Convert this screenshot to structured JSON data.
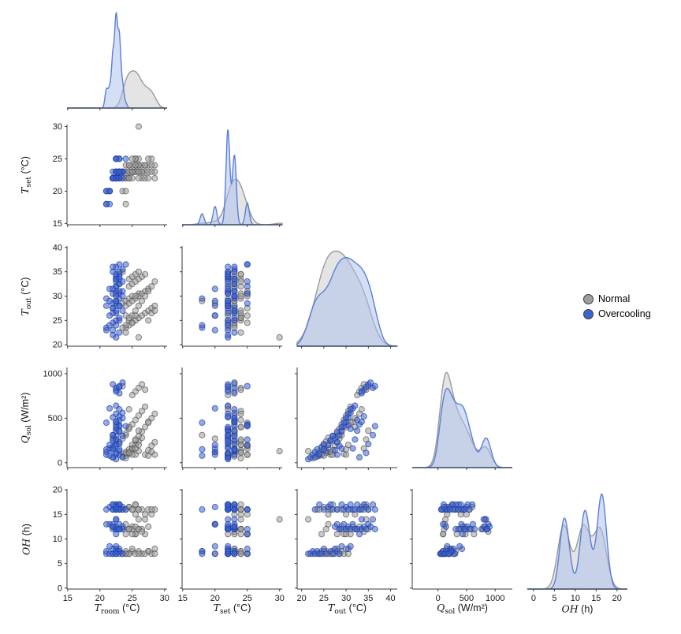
{
  "legend": {
    "items": [
      {
        "key": "normal",
        "label": "Normal",
        "color": "#9e9e9e"
      },
      {
        "key": "overcooling",
        "label": "Overcooling",
        "color": "#3d63d0"
      }
    ]
  },
  "chart_data": {
    "type": "scatter",
    "subtype": "corner-pairplot-matrix",
    "description": "5x5 lower-triangle pair plot: scatter panels below the diagonal, per-class KDE density curves on the diagonal, comparing Normal vs Overcooling operation records.",
    "grid": "on? no - grid off, white background, left/bottom spines only",
    "legend_position": "right-middle",
    "variables": [
      {
        "key": "t_room",
        "label": "T_room (°C)",
        "xlim": [
          14.9,
          30.4
        ],
        "ylim": [
          14.9,
          30.4
        ],
        "ticks": [
          15,
          20,
          25,
          30
        ],
        "kde_bw": {
          "normal": 0.55,
          "overcooling": 0.22
        }
      },
      {
        "key": "t_set",
        "label": "T_set (°C)",
        "xlim": [
          14.9,
          30.4
        ],
        "ylim": [
          14.8,
          30.3
        ],
        "ticks": [
          15,
          20,
          25,
          30
        ],
        "kde_bw": {
          "normal": 0.8,
          "overcooling": 0.3
        }
      },
      {
        "key": "t_out",
        "label": "T_out (°C)",
        "xlim": [
          19.0,
          41.5
        ],
        "ylim": [
          19.7,
          40.3
        ],
        "ticks": [
          20,
          25,
          30,
          35,
          40
        ],
        "kde_bw": {
          "normal": 2.0,
          "overcooling": 1.4
        }
      },
      {
        "key": "q_sol",
        "label": "Q_sol (W/m²)",
        "xlim": [
          -450,
          1300
        ],
        "ylim": [
          -55,
          1070
        ],
        "ticks": [
          0,
          500,
          1000
        ],
        "kde_bw": {
          "normal": 90,
          "overcooling": 75
        }
      },
      {
        "key": "oh",
        "label": "OH (h)",
        "xlim": [
          -1.5,
          22.5
        ],
        "ylim": [
          -0.2,
          20.2
        ],
        "ticks": [
          0,
          5,
          10,
          15,
          20
        ],
        "kde_bw": {
          "normal": 1.4,
          "overcooling": 1.0
        }
      }
    ],
    "series": [
      {
        "key": "normal",
        "name": "Normal",
        "point_fill": "#9e9e9e",
        "point_edge": "#4f4f4f",
        "kde_stroke": "#9a9a9a",
        "kde_fill": "#c9c9c9",
        "record_fields": [
          "t_room",
          "t_set",
          "t_out",
          "q_sol",
          "oh"
        ],
        "records": [
          [
            24,
            22,
            23.5,
            80,
            7
          ],
          [
            24.5,
            23,
            24,
            120,
            7
          ],
          [
            25,
            23,
            24.5,
            160,
            7.5
          ],
          [
            25.5,
            24,
            25,
            200,
            7
          ],
          [
            26,
            24,
            25.5,
            240,
            7.5
          ],
          [
            26.5,
            22,
            26,
            280,
            7
          ],
          [
            27,
            23,
            26.5,
            90,
            7
          ],
          [
            27.5,
            24,
            27,
            140,
            7.5
          ],
          [
            28,
            25,
            27.5,
            190,
            7
          ],
          [
            28.5,
            23,
            28,
            230,
            8
          ],
          [
            23.5,
            20,
            28.5,
            270,
            7
          ],
          [
            24,
            18,
            29,
            310,
            7.5
          ],
          [
            24.5,
            22,
            29.5,
            100,
            7
          ],
          [
            25,
            23,
            30,
            150,
            8
          ],
          [
            26,
            25,
            30.5,
            200,
            7
          ],
          [
            24,
            23,
            28,
            330,
            11
          ],
          [
            24.5,
            22,
            28.5,
            380,
            12
          ],
          [
            25,
            23,
            29,
            430,
            12.5
          ],
          [
            25.5,
            24,
            29.5,
            480,
            11
          ],
          [
            26,
            23,
            30,
            530,
            12
          ],
          [
            26.5,
            24,
            30.5,
            580,
            12
          ],
          [
            27,
            22,
            31,
            630,
            11
          ],
          [
            27.5,
            23,
            31.5,
            460,
            12.5
          ],
          [
            24.5,
            24,
            32,
            400,
            12
          ],
          [
            25,
            22,
            32.5,
            760,
            12
          ],
          [
            25.5,
            23,
            33,
            800,
            12.5
          ],
          [
            26,
            24,
            33.5,
            840,
            12
          ],
          [
            26.5,
            23,
            34,
            880,
            11.5
          ],
          [
            27,
            24,
            34.5,
            820,
            14
          ],
          [
            23.5,
            22,
            35,
            860,
            12
          ],
          [
            25.5,
            25,
            30,
            90,
            11
          ],
          [
            26,
            30,
            21.5,
            130,
            14
          ],
          [
            24,
            20,
            26,
            120,
            13
          ],
          [
            24,
            22,
            24,
            100,
            16
          ],
          [
            24.5,
            23,
            25,
            150,
            16.5
          ],
          [
            25,
            24,
            26,
            200,
            16
          ],
          [
            25.5,
            23,
            27,
            250,
            17
          ],
          [
            26,
            22,
            28,
            300,
            16
          ],
          [
            26.5,
            23,
            29,
            350,
            16
          ],
          [
            27,
            24,
            30,
            400,
            15
          ],
          [
            27.5,
            25,
            31,
            450,
            16
          ],
          [
            28,
            23,
            32,
            500,
            15
          ],
          [
            28.5,
            24,
            33,
            550,
            16
          ],
          [
            24.5,
            22,
            33.5,
            600,
            16.5
          ],
          [
            25,
            23,
            34,
            160,
            16
          ],
          [
            25.5,
            24,
            34.5,
            260,
            17
          ],
          [
            26,
            23,
            35,
            360,
            16
          ],
          [
            23.5,
            23,
            23.5,
            70,
            16
          ],
          [
            28,
            24,
            26.5,
            120,
            16
          ],
          [
            25.5,
            25,
            26,
            160,
            15
          ],
          [
            24,
            24,
            22.5,
            50,
            7
          ],
          [
            27.5,
            22,
            25,
            80,
            7.5
          ],
          [
            28.5,
            22,
            27,
            90,
            7
          ],
          [
            25,
            25,
            24.5,
            90,
            11
          ],
          [
            24.5,
            24,
            25.5,
            110,
            12
          ]
        ]
      },
      {
        "key": "overcooling",
        "name": "Overcooling",
        "point_fill": "#3d63d0",
        "point_edge": "#1c3a9e",
        "kde_stroke": "#5b7fd9",
        "kde_fill": "#a9bee9",
        "record_fields": [
          "t_room",
          "t_set",
          "t_out",
          "q_sol",
          "oh"
        ],
        "records": [
          [
            22.5,
            22,
            21.5,
            40,
            7
          ],
          [
            22,
            22,
            22,
            60,
            7
          ],
          [
            23,
            23,
            22.5,
            90,
            7.5
          ],
          [
            21,
            20,
            23,
            120,
            7
          ],
          [
            21,
            18,
            23.5,
            150,
            7.5
          ],
          [
            21.5,
            18,
            24,
            80,
            7
          ],
          [
            22,
            22,
            24.5,
            180,
            7
          ],
          [
            22.5,
            22,
            25,
            210,
            8
          ],
          [
            23,
            23,
            25.5,
            130,
            7
          ],
          [
            22.5,
            23,
            26.5,
            250,
            7.5
          ],
          [
            23.5,
            23,
            27,
            300,
            7
          ],
          [
            22,
            22,
            27.5,
            270,
            8
          ],
          [
            23,
            22,
            28,
            230,
            7.5
          ],
          [
            22.5,
            25,
            28.5,
            190,
            7
          ],
          [
            21.5,
            20,
            29,
            160,
            8.5
          ],
          [
            23,
            25,
            30.5,
            420,
            8
          ],
          [
            22.5,
            22,
            31,
            380,
            8.5
          ],
          [
            22,
            22,
            28.5,
            310,
            12
          ],
          [
            22.5,
            22,
            29,
            360,
            12
          ],
          [
            23,
            23,
            29.5,
            410,
            13
          ],
          [
            22.5,
            23,
            30,
            460,
            12
          ],
          [
            22,
            22,
            30.5,
            510,
            12.5
          ],
          [
            23.5,
            23,
            31,
            560,
            12
          ],
          [
            21.5,
            20,
            31.5,
            610,
            13
          ],
          [
            22.5,
            22,
            32,
            640,
            12
          ],
          [
            23,
            23,
            32.5,
            480,
            12
          ],
          [
            22.5,
            25,
            33,
            430,
            11
          ],
          [
            23,
            23,
            33.5,
            780,
            12
          ],
          [
            22.5,
            22,
            34,
            820,
            12.5
          ],
          [
            23,
            22,
            34.5,
            850,
            12
          ],
          [
            22,
            22,
            35,
            880,
            13
          ],
          [
            23.5,
            23,
            35.5,
            900,
            12.5
          ],
          [
            22.5,
            23,
            36,
            840,
            14
          ],
          [
            23,
            25,
            36.5,
            860,
            12
          ],
          [
            22.5,
            22,
            33.5,
            800,
            14
          ],
          [
            21,
            20,
            28,
            90,
            13
          ],
          [
            22,
            23,
            27.5,
            140,
            12.5
          ],
          [
            22,
            22,
            23,
            60,
            16
          ],
          [
            22.5,
            22,
            24,
            100,
            17
          ],
          [
            23,
            23,
            25,
            150,
            16
          ],
          [
            21.5,
            20,
            26,
            200,
            16.5
          ],
          [
            22,
            22,
            26.5,
            250,
            17
          ],
          [
            22.5,
            23,
            27,
            300,
            16
          ],
          [
            23,
            22,
            28,
            350,
            16
          ],
          [
            22.5,
            22,
            29,
            400,
            17
          ],
          [
            21,
            18,
            29.5,
            450,
            16
          ],
          [
            23.5,
            23,
            30,
            500,
            16.5
          ],
          [
            22.5,
            22,
            30.5,
            550,
            16
          ],
          [
            23,
            23,
            31,
            600,
            17
          ],
          [
            22,
            22,
            31.5,
            160,
            16
          ],
          [
            22.5,
            25,
            32,
            260,
            16
          ],
          [
            23,
            23,
            32.5,
            360,
            17
          ],
          [
            23.5,
            22,
            33,
            60,
            16
          ],
          [
            22.5,
            23,
            33.5,
            460,
            16
          ],
          [
            23,
            22,
            34,
            520,
            17
          ],
          [
            22.5,
            22,
            34.5,
            110,
            16.5
          ],
          [
            23,
            23,
            35,
            210,
            16
          ],
          [
            22,
            22,
            36,
            310,
            17
          ],
          [
            24,
            25,
            36.5,
            410,
            16
          ]
        ]
      }
    ]
  }
}
